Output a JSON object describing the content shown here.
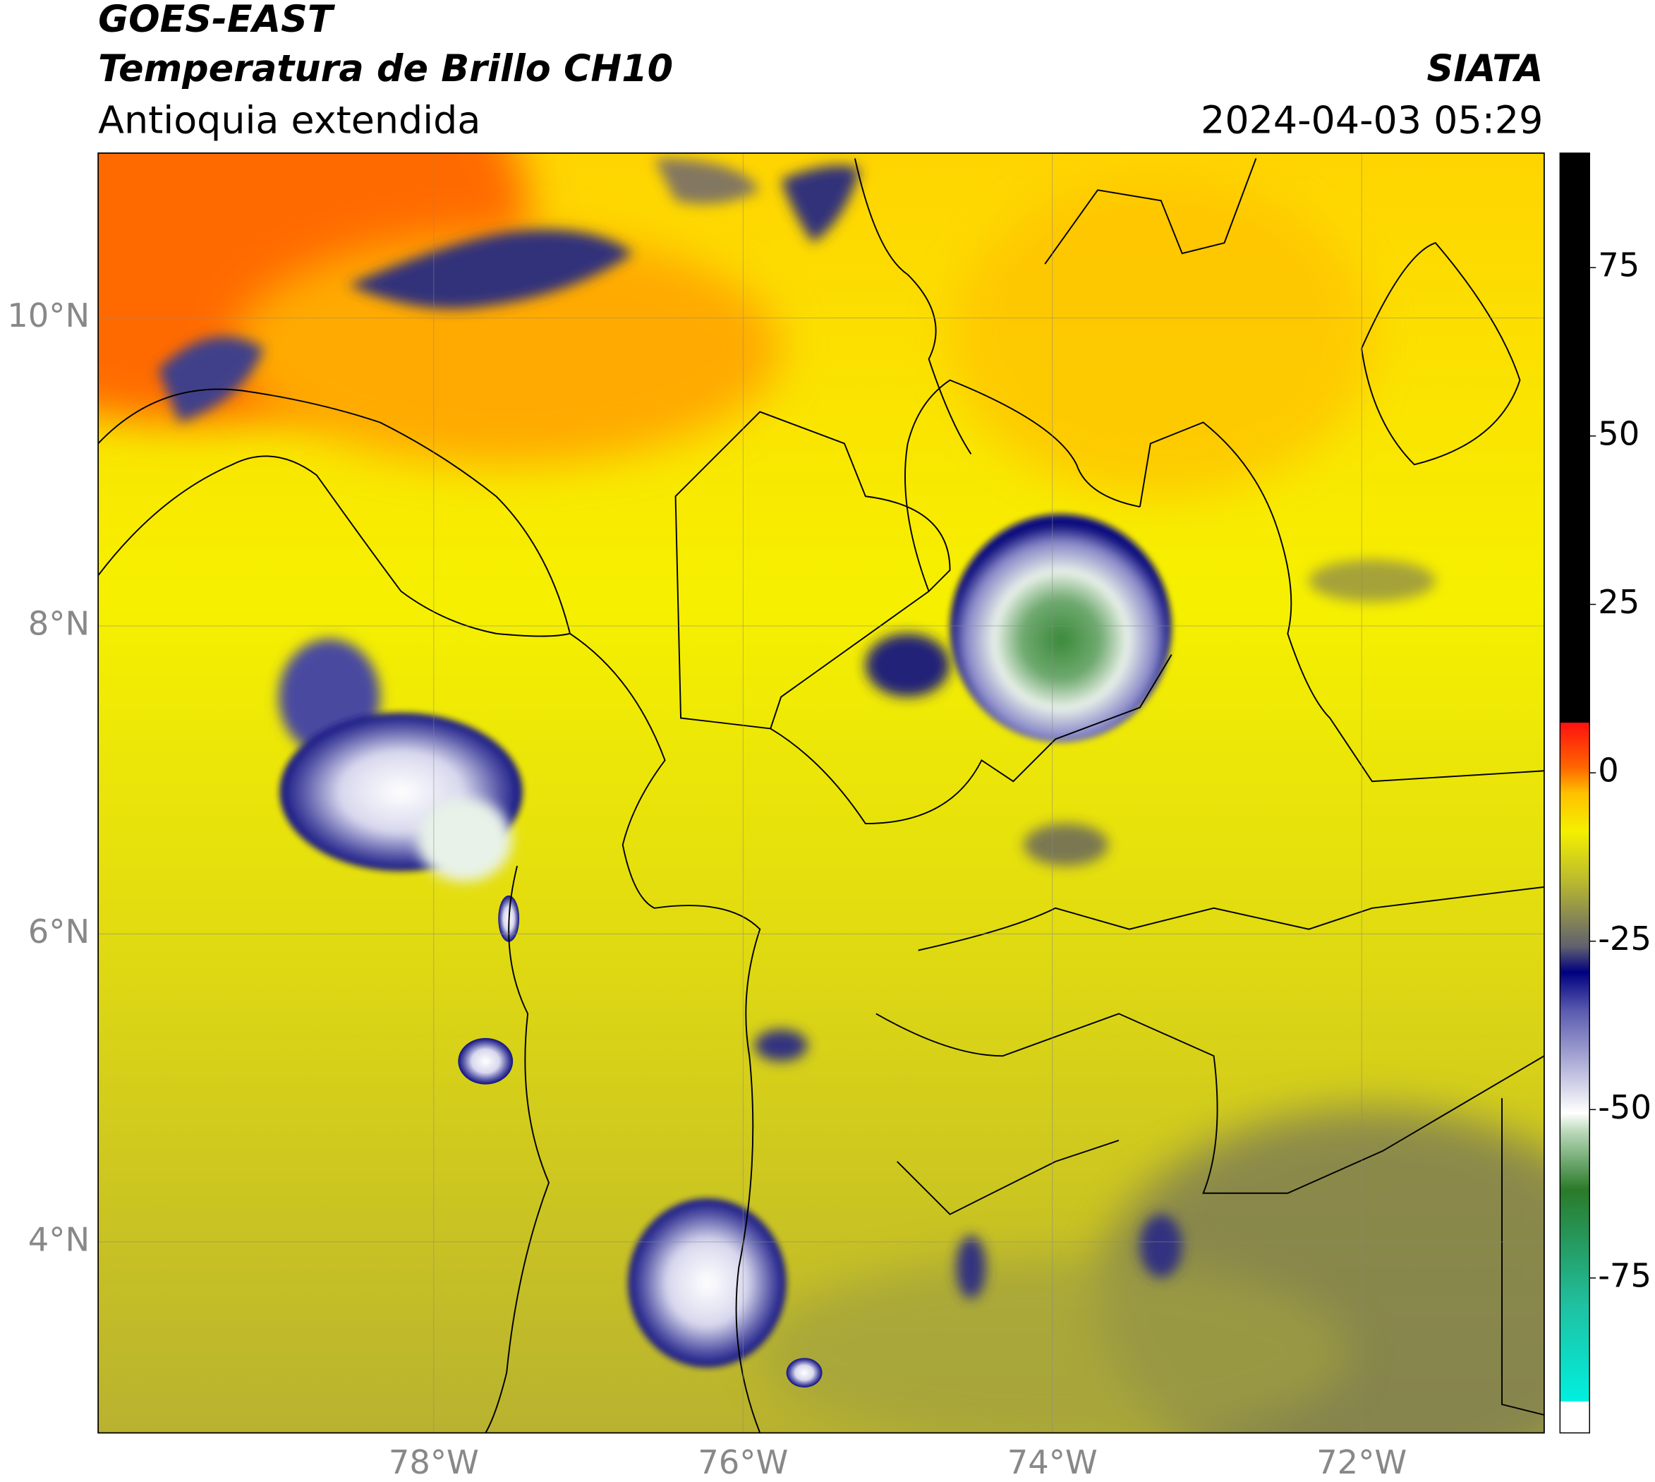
{
  "header": {
    "title": "GOES-EAST",
    "subtitle": "Temperatura de Brillo CH10",
    "region": "Antioquia extendida",
    "agency": "SIATA",
    "timestamp": "2024-04-03 05:29"
  },
  "map": {
    "xlim": [
      -80.17,
      -70.82
    ],
    "ylim": [
      2.76,
      11.07
    ],
    "xticks": [
      {
        "value": -78,
        "label": "78°W"
      },
      {
        "value": -76,
        "label": "76°W"
      },
      {
        "value": -74,
        "label": "74°W"
      },
      {
        "value": -72,
        "label": "72°W"
      }
    ],
    "yticks": [
      {
        "value": 10,
        "label": "10°N"
      },
      {
        "value": 8,
        "label": "8°N"
      },
      {
        "value": 6,
        "label": "6°N"
      },
      {
        "value": 4,
        "label": "4°N"
      }
    ]
  },
  "colorbar": {
    "lim": [
      -98,
      92
    ],
    "ticks": [
      75,
      50,
      25,
      0,
      -25,
      -50,
      -75
    ]
  }
}
